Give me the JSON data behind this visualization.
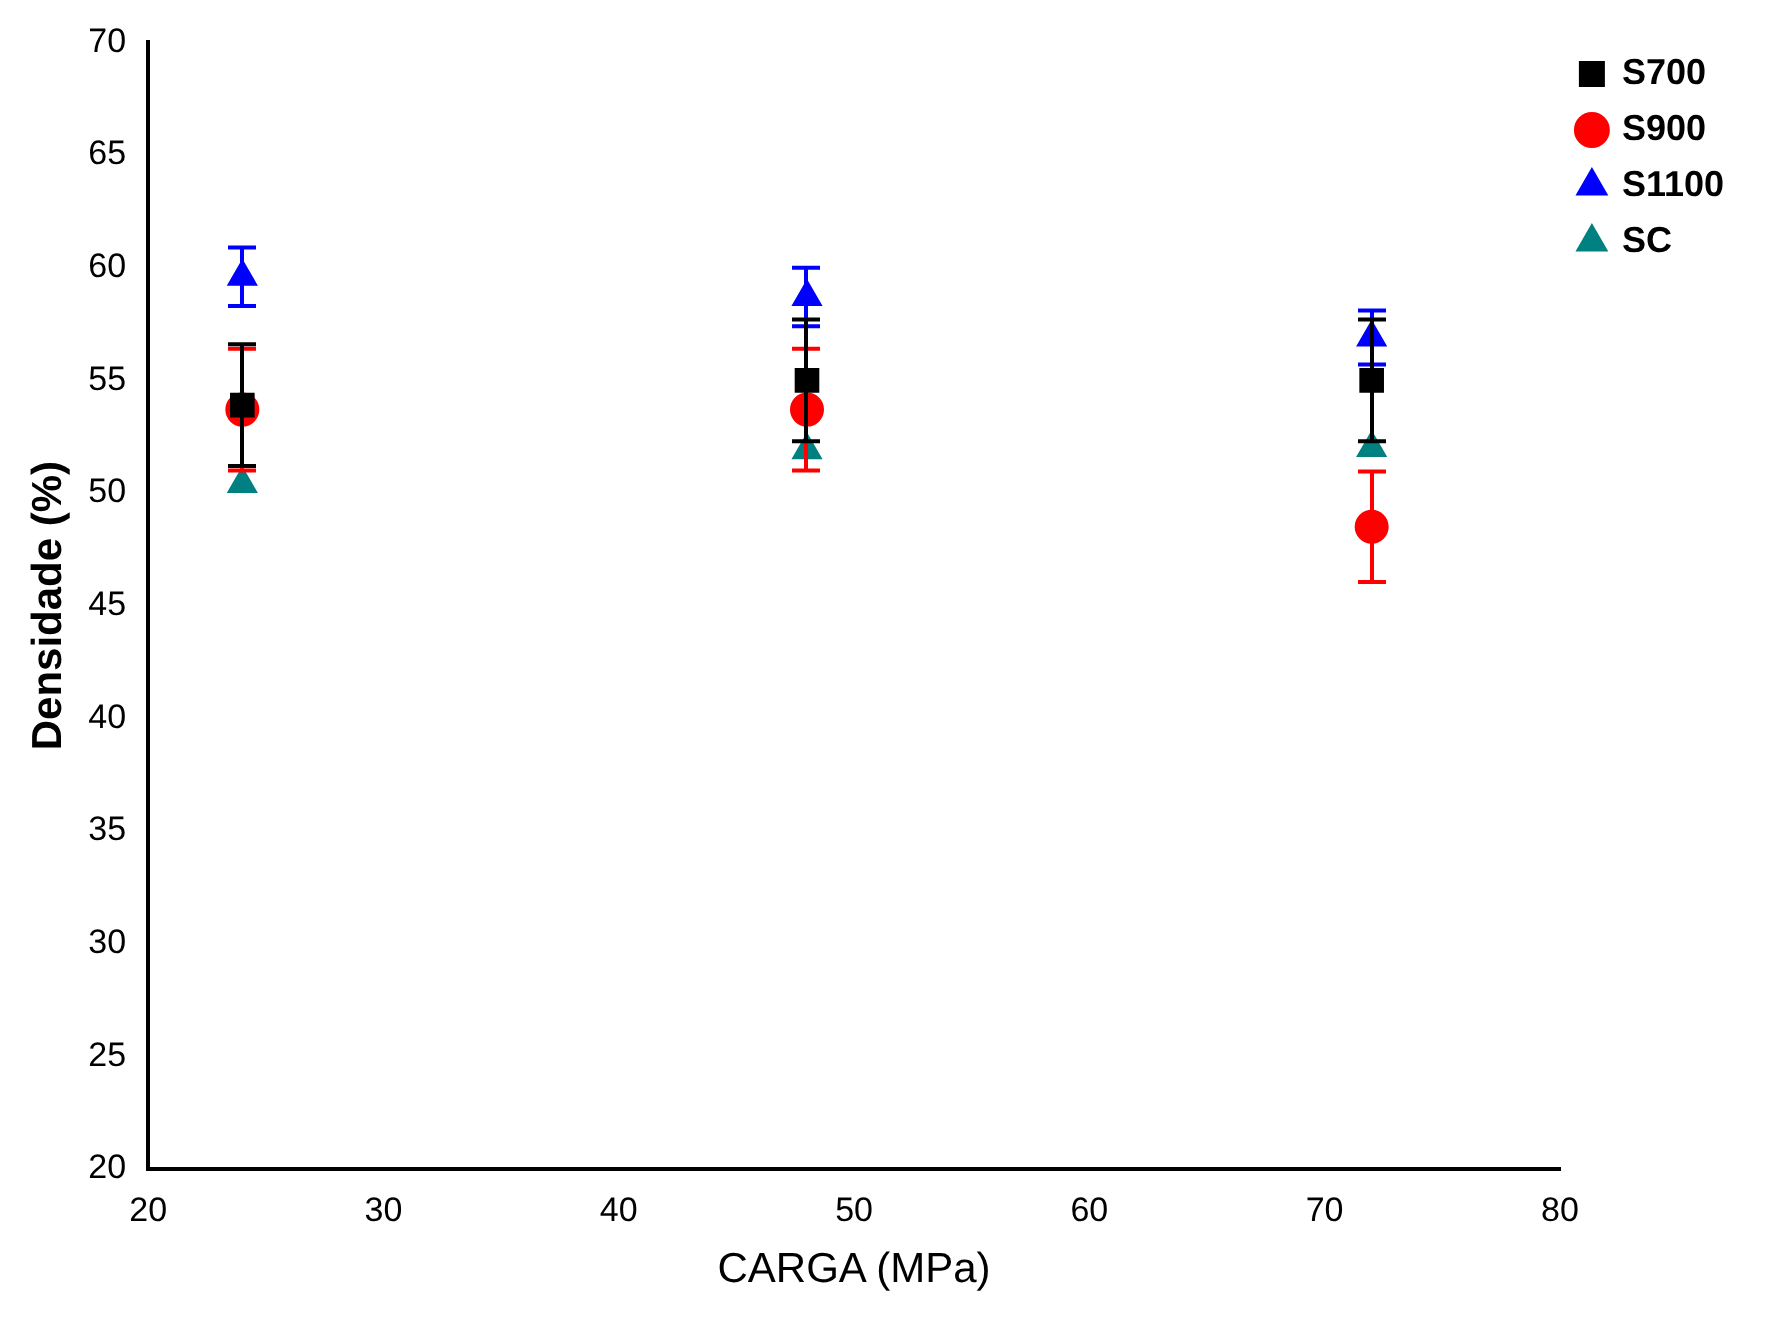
{
  "chart_data": {
    "type": "scatter",
    "xlabel": "CARGA (MPa)",
    "ylabel": "Densidade (%)",
    "x": [
      24,
      48,
      72
    ],
    "xlim": [
      20,
      80
    ],
    "xticks": [
      20,
      30,
      40,
      50,
      60,
      70,
      80
    ],
    "ylim": [
      20,
      70
    ],
    "yticks": [
      20,
      25,
      30,
      35,
      40,
      45,
      50,
      55,
      60,
      65,
      70
    ],
    "grid": false,
    "legend": "top right",
    "series": [
      {
        "name": "S700",
        "color": "#000000",
        "marker": "square",
        "values": [
          53.9,
          55.0,
          55.0
        ],
        "errors": [
          2.7,
          2.7,
          2.7
        ]
      },
      {
        "name": "S900",
        "color": "#ff0000",
        "marker": "circle",
        "values": [
          53.7,
          53.7,
          48.5
        ],
        "errors": [
          2.7,
          2.7,
          2.45
        ]
      },
      {
        "name": "S1100",
        "color": "#0000ff",
        "marker": "triangle",
        "values": [
          59.6,
          58.7,
          56.9
        ],
        "errors": [
          1.3,
          1.3,
          1.2
        ]
      },
      {
        "name": "SC",
        "color": "#008080",
        "marker": "triangle",
        "values": [
          50.4,
          51.9,
          52.0
        ]
      }
    ]
  }
}
